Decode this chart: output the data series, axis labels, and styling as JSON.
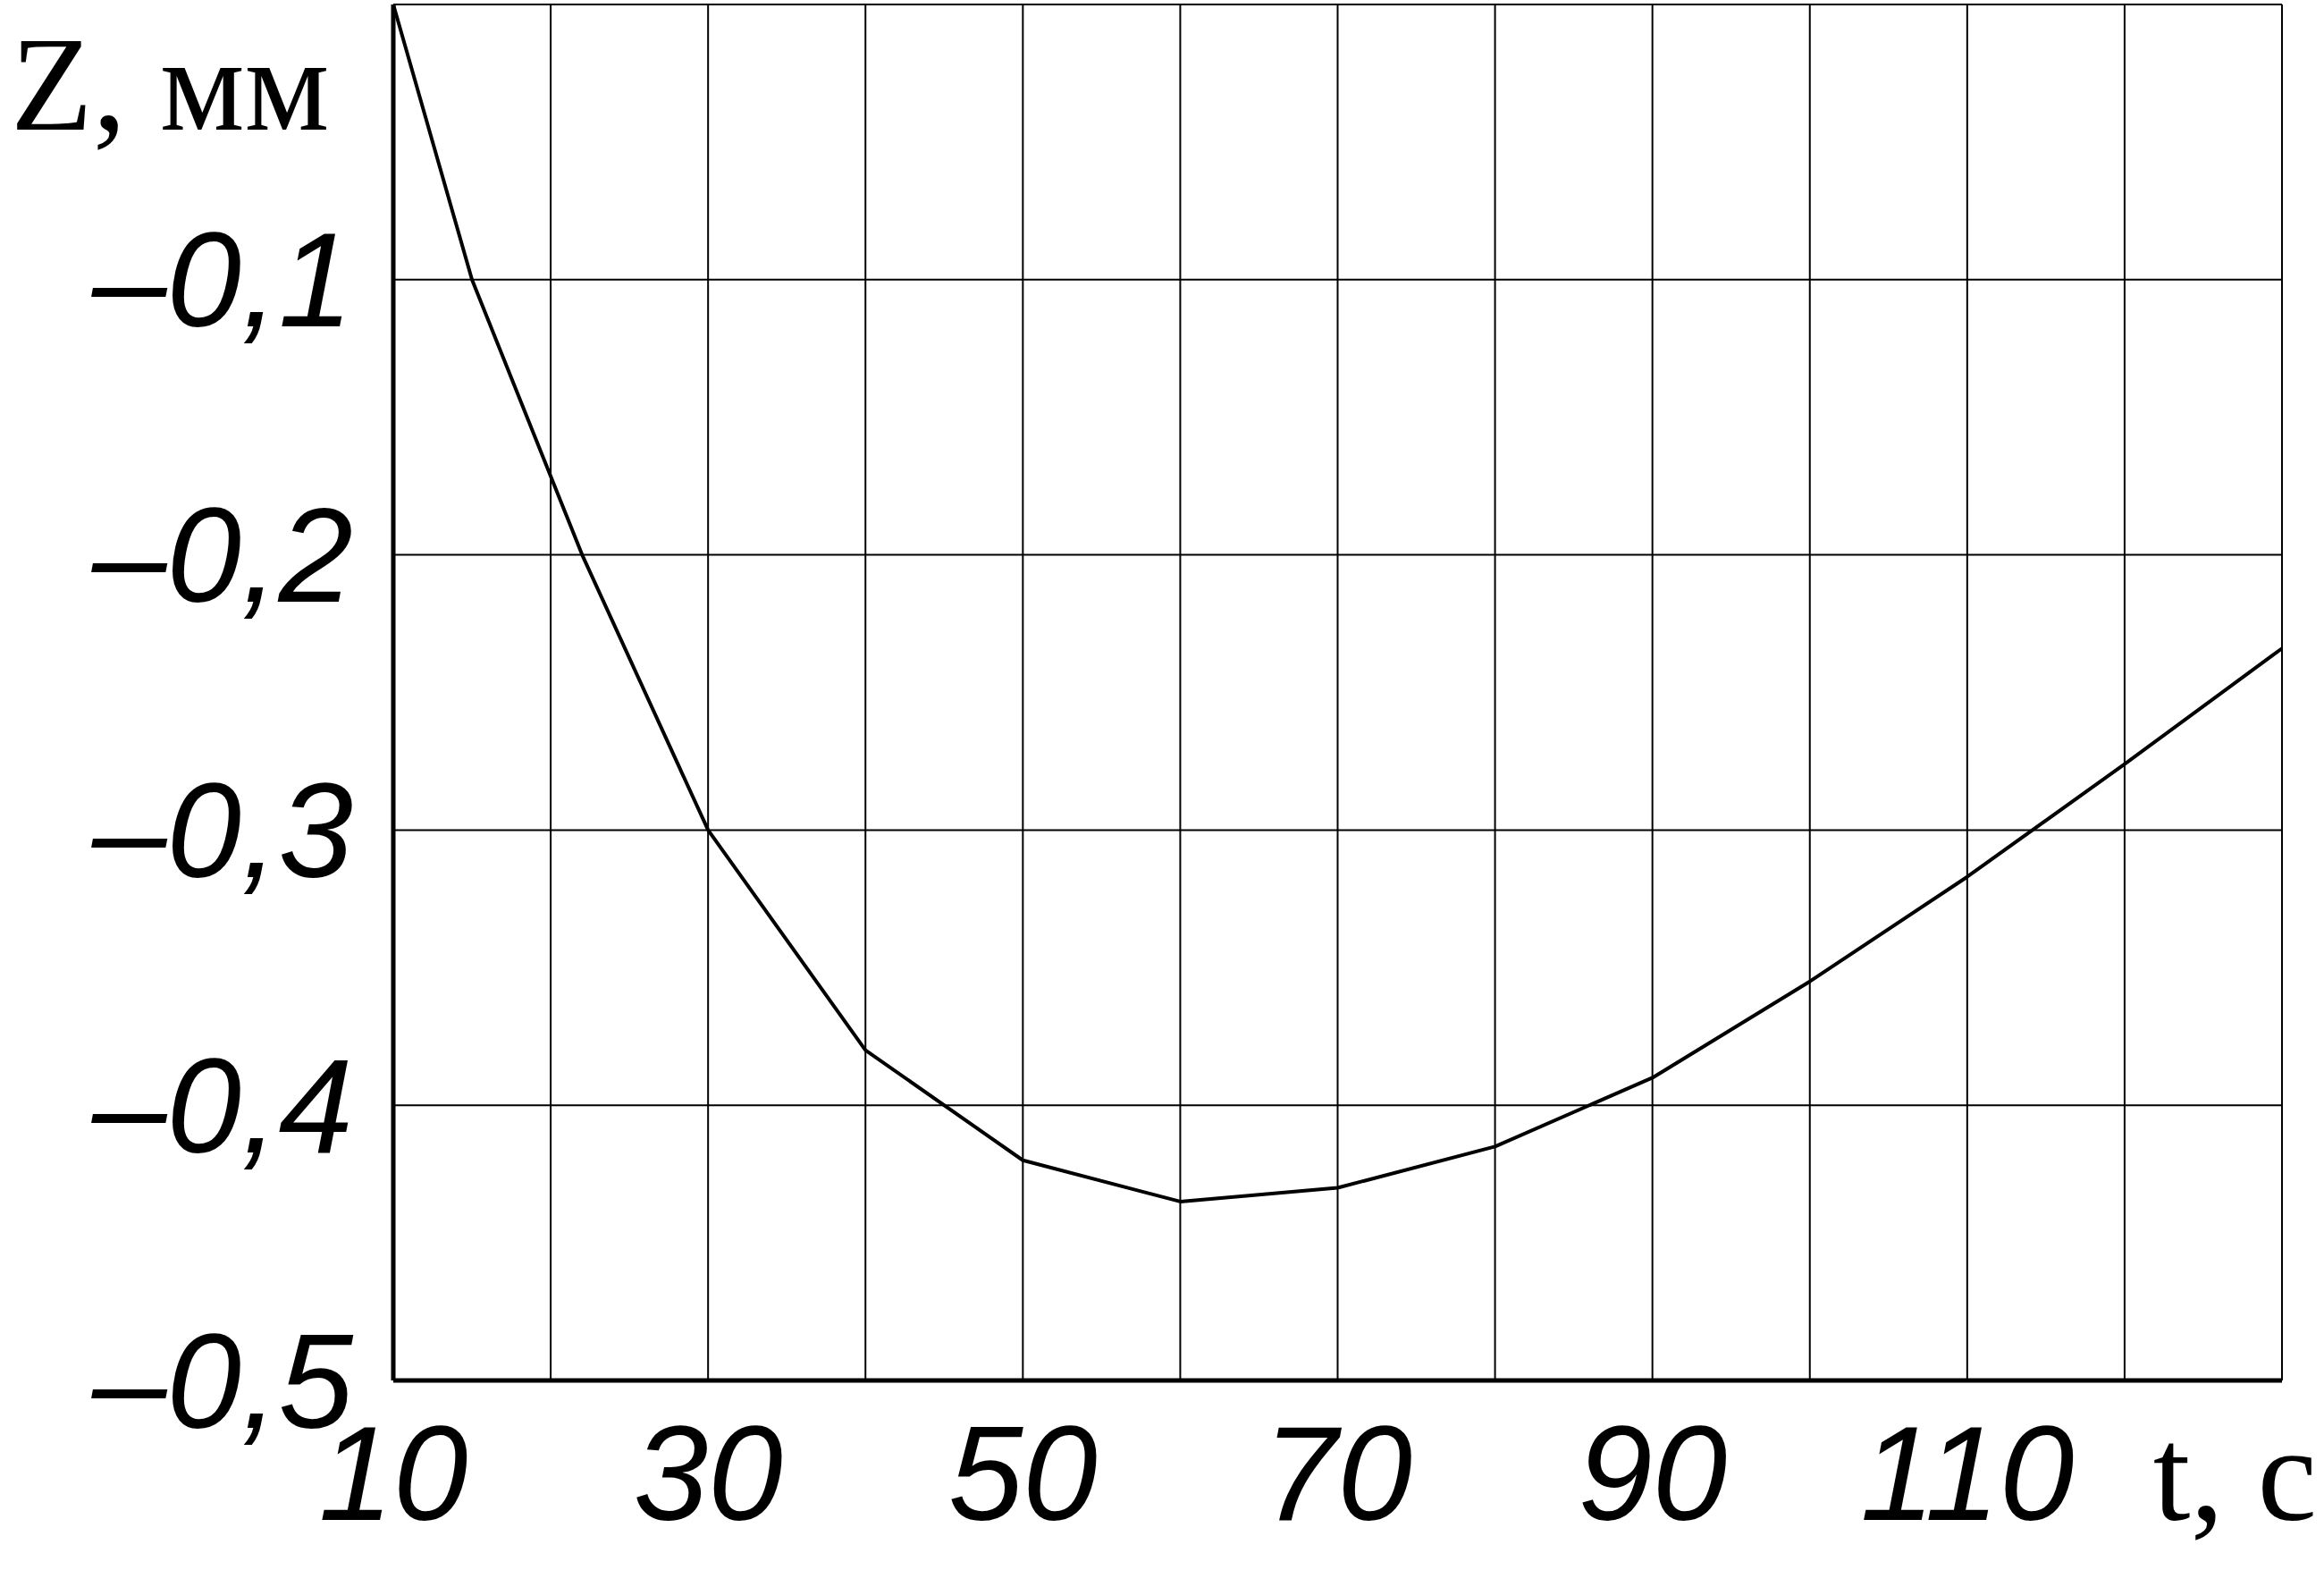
{
  "chart_data": {
    "type": "line",
    "xlabel": "t, с",
    "ylabel": "Z, мм",
    "x": [
      10,
      15,
      22,
      30,
      40,
      50,
      60,
      70,
      80,
      90,
      100,
      110,
      120,
      130
    ],
    "series": [
      {
        "color": "#000000",
        "values": [
          0,
          -0.1,
          -0.2,
          -0.3,
          -0.38,
          -0.42,
          -0.435,
          -0.43,
          -0.415,
          -0.39,
          -0.355,
          -0.317,
          -0.276,
          -0.234
        ]
      }
    ],
    "xlim": [
      10,
      130
    ],
    "ylim": [
      -0.5,
      0
    ],
    "xticks": [
      10,
      {
        "value": 20,
        "label": null
      },
      30,
      {
        "value": 40,
        "label": null
      },
      50,
      {
        "value": 60,
        "label": null
      },
      70,
      {
        "value": 80,
        "label": null
      },
      90,
      {
        "value": 100,
        "label": null
      },
      110,
      {
        "value": 120,
        "label": null
      },
      {
        "value": 130,
        "label": null
      }
    ],
    "yticks": [
      {
        "value": -0.5,
        "label": "–0,5"
      },
      {
        "value": -0.4,
        "label": "–0,4"
      },
      {
        "value": -0.3,
        "label": "–0,3"
      },
      {
        "value": -0.2,
        "label": "–0,2"
      },
      {
        "value": -0.1,
        "label": "–0,1"
      },
      {
        "value": 0,
        "label": null
      }
    ],
    "grid": true,
    "marker": "none",
    "line_style": "solid"
  }
}
